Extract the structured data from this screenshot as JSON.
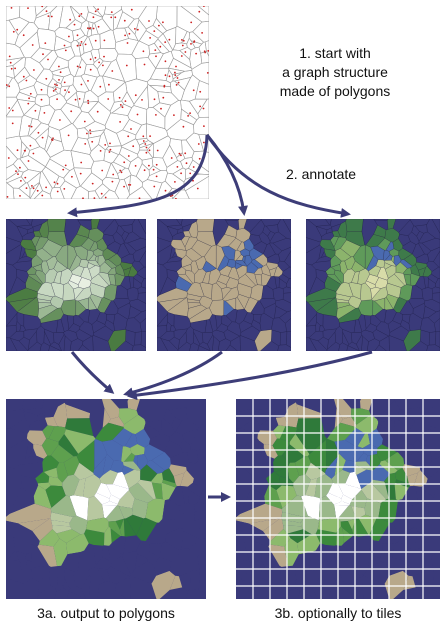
{
  "steps": {
    "step1": [
      "1. start with",
      "a graph structure",
      "made of polygons"
    ],
    "step2": "2. annotate",
    "step3a": "3a. output to polygons",
    "step3b": "3b. optionally to tiles"
  },
  "colors": {
    "ocean": "#3a3a7a",
    "ocean_deep": "#2e2e66",
    "sand": "#b8a88a",
    "land_dark": "#3c8a3c",
    "land_mid": "#5ea04e",
    "land_light": "#8cba6c",
    "highland": "#b8c8a0",
    "snow": "#ffffff",
    "lake": "#4a6ab0",
    "arrow": "#3d3d78",
    "grid": "#ffffff"
  }
}
